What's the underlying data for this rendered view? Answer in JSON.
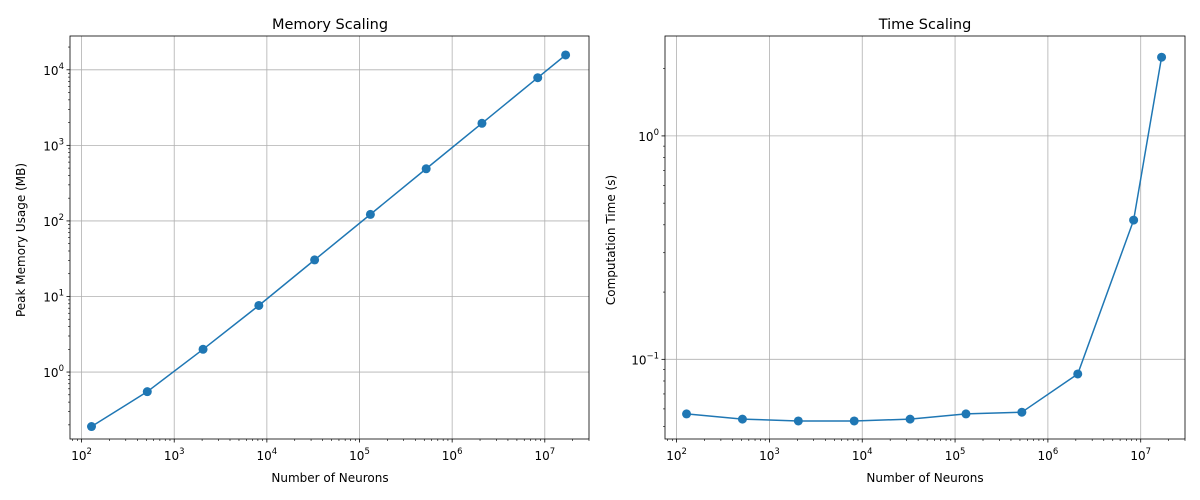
{
  "chart_data": [
    {
      "type": "line",
      "title": "Memory Scaling",
      "xlabel": "Number of Neurons",
      "ylabel": "Peak Memory Usage (MB)",
      "xscale": "log",
      "yscale": "log",
      "grid": true,
      "xlim": [
        75,
        30000000
      ],
      "ylim": [
        0.13,
        28000
      ],
      "xticks": [
        {
          "value": 100,
          "base": "10",
          "exp": "2"
        },
        {
          "value": 1000,
          "base": "10",
          "exp": "3"
        },
        {
          "value": 10000,
          "base": "10",
          "exp": "4"
        },
        {
          "value": 100000,
          "base": "10",
          "exp": "5"
        },
        {
          "value": 1000000,
          "base": "10",
          "exp": "6"
        },
        {
          "value": 10000000,
          "base": "10",
          "exp": "7"
        }
      ],
      "yticks": [
        {
          "value": 1,
          "base": "10",
          "exp": "0"
        },
        {
          "value": 10,
          "base": "10",
          "exp": "1"
        },
        {
          "value": 100,
          "base": "10",
          "exp": "2"
        },
        {
          "value": 1000,
          "base": "10",
          "exp": "3"
        },
        {
          "value": 10000,
          "base": "10",
          "exp": "4"
        }
      ],
      "series": [
        {
          "name": "memory",
          "color": "#1f77b4",
          "x": [
            128,
            512,
            2048,
            8192,
            32768,
            131072,
            524288,
            2097152,
            8388608,
            16777216
          ],
          "values": [
            0.19,
            0.55,
            2.0,
            7.6,
            30.5,
            122,
            490,
            1960,
            7850,
            15700
          ]
        }
      ]
    },
    {
      "type": "line",
      "title": "Time Scaling",
      "xlabel": "Number of Neurons",
      "ylabel": "Computation Time (s)",
      "xscale": "log",
      "yscale": "log",
      "grid": true,
      "xlim": [
        75,
        30000000
      ],
      "ylim": [
        0.044,
        2.8
      ],
      "xticks": [
        {
          "value": 100,
          "base": "10",
          "exp": "2"
        },
        {
          "value": 1000,
          "base": "10",
          "exp": "3"
        },
        {
          "value": 10000,
          "base": "10",
          "exp": "4"
        },
        {
          "value": 100000,
          "base": "10",
          "exp": "5"
        },
        {
          "value": 1000000,
          "base": "10",
          "exp": "6"
        },
        {
          "value": 10000000,
          "base": "10",
          "exp": "7"
        }
      ],
      "yticks": [
        {
          "value": 0.1,
          "base": "10",
          "exp": "−1"
        },
        {
          "value": 1,
          "base": "10",
          "exp": "0"
        }
      ],
      "series": [
        {
          "name": "time",
          "color": "#1f77b4",
          "x": [
            128,
            512,
            2048,
            8192,
            32768,
            131072,
            524288,
            2097152,
            8388608,
            16777216
          ],
          "values": [
            0.057,
            0.054,
            0.053,
            0.053,
            0.054,
            0.057,
            0.058,
            0.086,
            0.42,
            2.25
          ]
        }
      ]
    }
  ]
}
